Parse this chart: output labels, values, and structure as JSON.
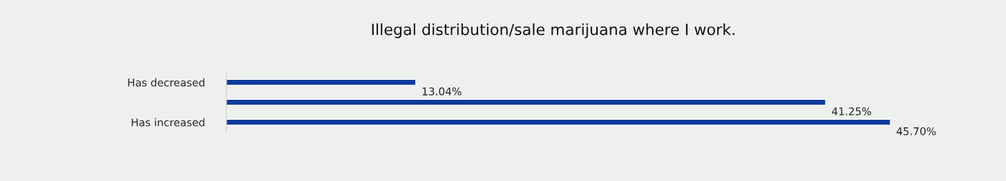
{
  "chart_data": {
    "type": "bar",
    "orientation": "horizontal",
    "title": "Illegal distribution/sale marijuana where I work.",
    "categories": [
      "Has decreased",
      null,
      "Has increased"
    ],
    "values": [
      13.04,
      41.25,
      45.7
    ],
    "value_labels": [
      "13.04%",
      "41.25%",
      "45.70%"
    ],
    "color": "#0d3a9a",
    "grid": false,
    "legend": false
  }
}
